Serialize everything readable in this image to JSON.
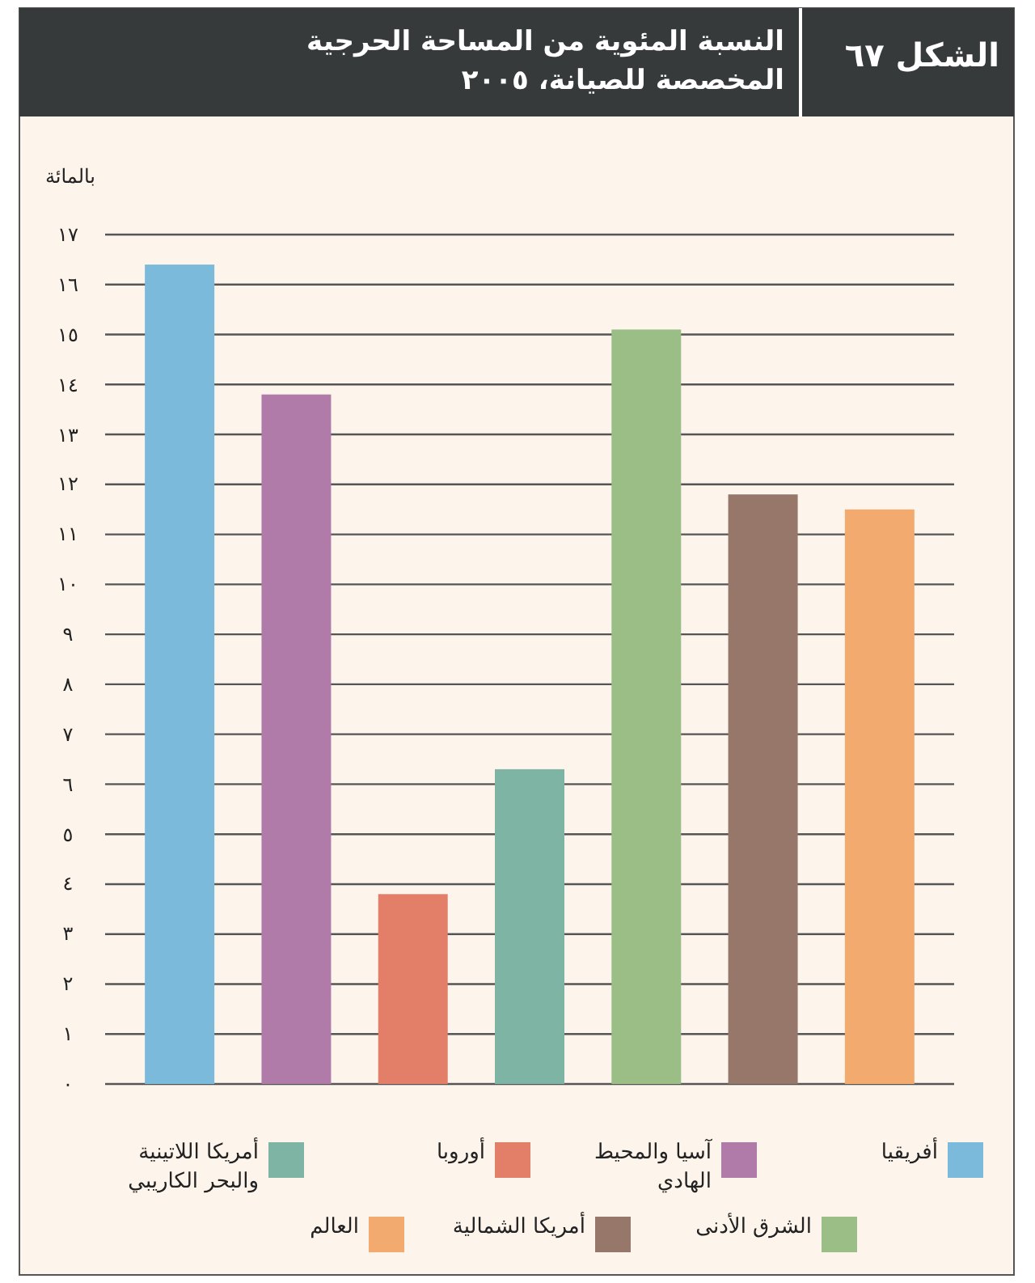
{
  "chart_data": {
    "type": "bar",
    "title": "النسبة المئوية من المساحة الحرجية المخصصة للصيانة، ٢٠٠٥",
    "annotations": [
      "الشكل ٦٧"
    ],
    "ylabel": "بالمائة",
    "categories": [
      null,
      null,
      null,
      null,
      null,
      null,
      null
    ],
    "series": [
      {
        "name": "أفريقيا",
        "color": "#7bbadb",
        "values": [
          16.4,
          null,
          null,
          null,
          null,
          null,
          null
        ]
      },
      {
        "name": "آسيا والمحيط الهادي",
        "color": "#b07ba9",
        "values": [
          null,
          13.8,
          null,
          null,
          null,
          null,
          null
        ]
      },
      {
        "name": "أوروبا",
        "color": "#e37e69",
        "values": [
          null,
          null,
          3.8,
          null,
          null,
          null,
          null
        ]
      },
      {
        "name": "أمريكا اللاتينية والبحر الكاريبي",
        "color": "#7db4a4",
        "values": [
          null,
          null,
          null,
          6.3,
          null,
          null,
          null
        ]
      },
      {
        "name": "الشرق الأدنى",
        "color": "#9bbe86",
        "values": [
          null,
          null,
          null,
          null,
          15.1,
          null,
          null
        ]
      },
      {
        "name": "أمريكا الشمالية",
        "color": "#97776a",
        "values": [
          null,
          null,
          null,
          null,
          null,
          11.8,
          null
        ]
      },
      {
        "name": "العالم",
        "color": "#f3aa6f",
        "values": [
          null,
          null,
          null,
          null,
          null,
          null,
          11.5
        ]
      }
    ],
    "ylim": [
      0,
      17
    ],
    "yticks": [
      {
        "value": 0,
        "label": "٠"
      },
      {
        "value": 1,
        "label": "١"
      },
      {
        "value": 2,
        "label": "٢"
      },
      {
        "value": 3,
        "label": "٣"
      },
      {
        "value": 4,
        "label": "٤"
      },
      {
        "value": 5,
        "label": "٥"
      },
      {
        "value": 6,
        "label": "٦"
      },
      {
        "value": 7,
        "label": "٧"
      },
      {
        "value": 8,
        "label": "٨"
      },
      {
        "value": 9,
        "label": "٩"
      },
      {
        "value": 10,
        "label": "١٠"
      },
      {
        "value": 11,
        "label": "١١"
      },
      {
        "value": 12,
        "label": "١٢"
      },
      {
        "value": 13,
        "label": "١٣"
      },
      {
        "value": 14,
        "label": "١٤"
      },
      {
        "value": 15,
        "label": "١٥"
      },
      {
        "value": 16,
        "label": "١٦"
      },
      {
        "value": 17,
        "label": "١٧"
      }
    ],
    "grid": "y",
    "legend": "bottom"
  }
}
